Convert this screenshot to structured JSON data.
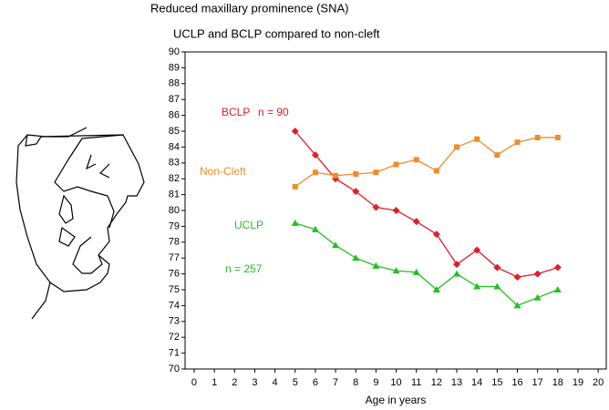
{
  "chart_data": {
    "type": "line",
    "title": "Reduced maxillary prominence (SNA)",
    "subtitle": "UCLP and BCLP compared to non-cleft",
    "x_label": "Age in years",
    "x": [
      5,
      6,
      7,
      8,
      9,
      10,
      11,
      12,
      13,
      14,
      15,
      16,
      17,
      18
    ],
    "series": [
      {
        "name": "BCLP",
        "color": "#e02028",
        "marker": "diamond",
        "values": [
          85,
          83.5,
          82,
          81.2,
          80.2,
          80,
          79.3,
          78.5,
          76.6,
          77.5,
          76.4,
          75.8,
          76,
          76.4
        ]
      },
      {
        "name": "Non-Cleft",
        "color": "#f08c28",
        "marker": "square",
        "values": [
          81.5,
          82.4,
          82.2,
          82.3,
          82.4,
          82.9,
          83.2,
          82.5,
          84,
          84.5,
          83.5,
          84.3,
          84.6,
          84.6
        ]
      },
      {
        "name": "UCLP",
        "color": "#22c022",
        "marker": "triangle",
        "values": [
          79.2,
          78.8,
          77.8,
          77,
          76.5,
          76.2,
          76.1,
          75,
          76,
          75.2,
          75.2,
          74,
          74.5,
          75
        ]
      }
    ],
    "annotations": [
      "n = 90",
      "n = 257"
    ],
    "xlim": [
      -0.45,
      20.4
    ],
    "ylim": [
      70,
      90
    ],
    "xticks": [
      0,
      1,
      2,
      3,
      4,
      5,
      6,
      7,
      8,
      9,
      10,
      11,
      12,
      13,
      14,
      15,
      16,
      17,
      18,
      19,
      20
    ],
    "yticks": [
      70,
      71,
      72,
      73,
      74,
      75,
      76,
      77,
      78,
      79,
      80,
      81,
      82,
      83,
      84,
      85,
      86,
      87,
      88,
      89,
      90
    ]
  }
}
